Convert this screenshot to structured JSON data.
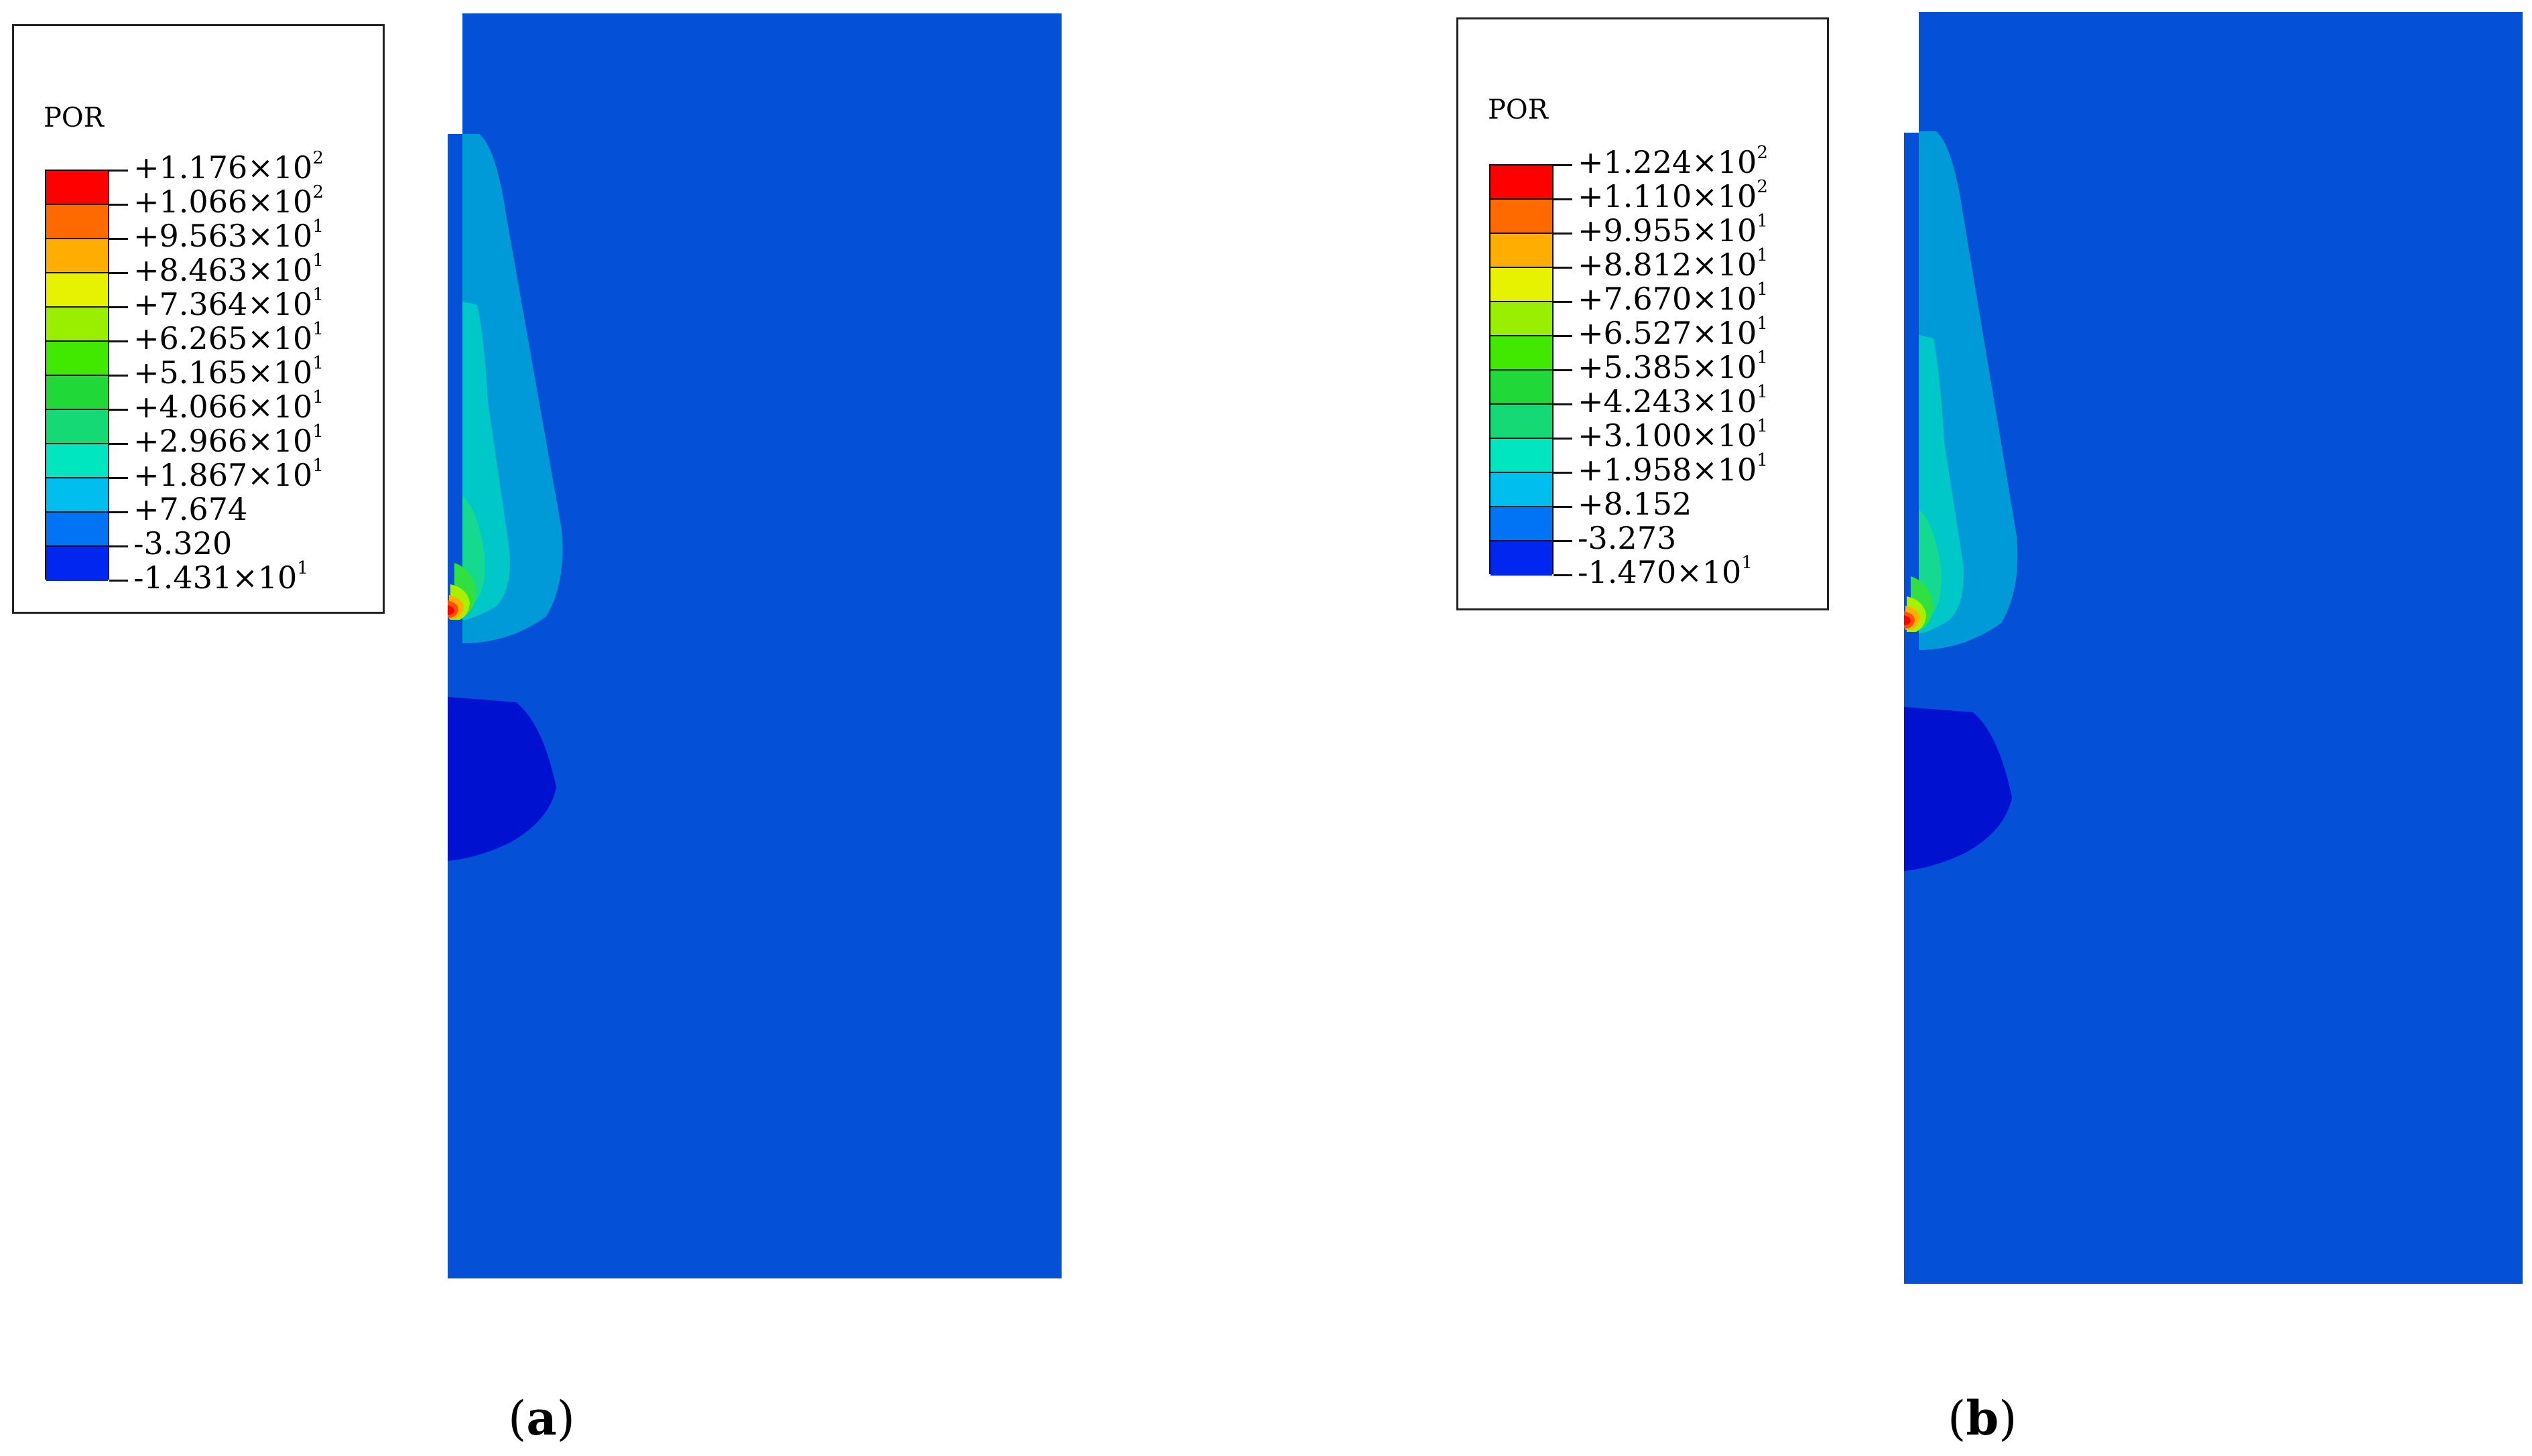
{
  "panels": [
    {
      "id": "a",
      "caption_letter": "a",
      "legend": {
        "title": "POR",
        "colors": [
          "#ff0000",
          "#ff6a00",
          "#ffae00",
          "#e7f200",
          "#9aef00",
          "#41e800",
          "#20d838",
          "#14d974",
          "#00e6c0",
          "#00bfee",
          "#0074f5",
          "#0026f0"
        ],
        "labels": [
          {
            "mantissa": "+1.176×10",
            "exp": "2"
          },
          {
            "mantissa": "+1.066×10",
            "exp": "2"
          },
          {
            "mantissa": "+9.563×10",
            "exp": "1"
          },
          {
            "mantissa": "+8.463×10",
            "exp": "1"
          },
          {
            "mantissa": "+7.364×10",
            "exp": "1"
          },
          {
            "mantissa": "+6.265×10",
            "exp": "1"
          },
          {
            "mantissa": "+5.165×10",
            "exp": "1"
          },
          {
            "mantissa": "+4.066×10",
            "exp": "1"
          },
          {
            "mantissa": "+2.966×10",
            "exp": "1"
          },
          {
            "mantissa": "+1.867×10",
            "exp": "1"
          },
          {
            "mantissa": "+7.674",
            "exp": ""
          },
          {
            "mantissa": "-3.320",
            "exp": ""
          },
          {
            "mantissa": "-1.431×10",
            "exp": "1"
          }
        ]
      }
    },
    {
      "id": "b",
      "caption_letter": "b",
      "legend": {
        "title": "POR",
        "colors": [
          "#ff0000",
          "#ff6a00",
          "#ffae00",
          "#e7f200",
          "#9aef00",
          "#41e800",
          "#20d838",
          "#14d974",
          "#00e6c0",
          "#00bfee",
          "#0074f5",
          "#0026f0"
        ],
        "labels": [
          {
            "mantissa": "+1.224×10",
            "exp": "2"
          },
          {
            "mantissa": "+1.110×10",
            "exp": "2"
          },
          {
            "mantissa": "+9.955×10",
            "exp": "1"
          },
          {
            "mantissa": "+8.812×10",
            "exp": "1"
          },
          {
            "mantissa": "+7.670×10",
            "exp": "1"
          },
          {
            "mantissa": "+6.527×10",
            "exp": "1"
          },
          {
            "mantissa": "+5.385×10",
            "exp": "1"
          },
          {
            "mantissa": "+4.243×10",
            "exp": "1"
          },
          {
            "mantissa": "+3.100×10",
            "exp": "1"
          },
          {
            "mantissa": "+1.958×10",
            "exp": "1"
          },
          {
            "mantissa": "+8.152",
            "exp": ""
          },
          {
            "mantissa": "-3.273",
            "exp": ""
          },
          {
            "mantissa": "-1.470×10",
            "exp": "1"
          }
        ]
      }
    }
  ],
  "contour_colors": {
    "field": "#0450d6",
    "band_outer": "#009ad8",
    "band_2": "#00c8c8",
    "band_3": "#14d990",
    "band_4": "#30e040",
    "band_5": "#a8f000",
    "band_6": "#ffb000",
    "band_7": "#ff5000",
    "peak": "#ff0000",
    "negative": "#0012d0"
  }
}
